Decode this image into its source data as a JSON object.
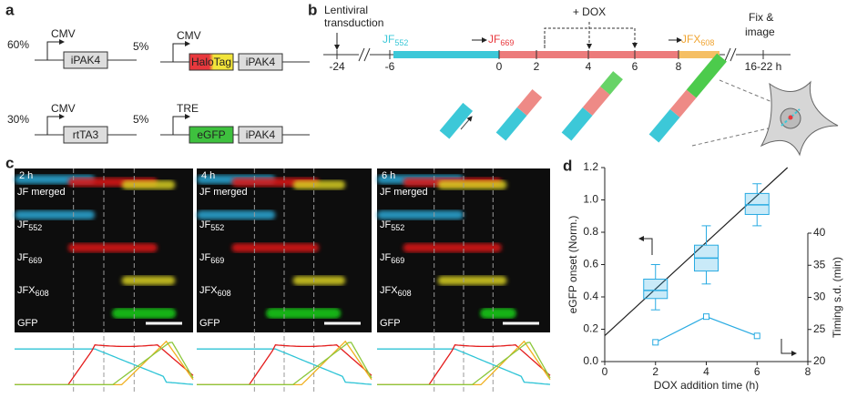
{
  "panel_a": {
    "label": "a",
    "constructs": [
      {
        "fraction": "60%",
        "promoter": "CMV",
        "parts": [
          "iPAK4"
        ]
      },
      {
        "fraction": "5%",
        "promoter": "CMV",
        "parts": [
          "HaloTag",
          "iPAK4"
        ]
      },
      {
        "fraction": "30%",
        "promoter": "CMV",
        "parts": [
          "rtTA3"
        ]
      },
      {
        "fraction": "5%",
        "promoter": "TRE",
        "parts": [
          "eGFP",
          "iPAK4"
        ]
      }
    ]
  },
  "panel_b": {
    "label": "b",
    "transduction": [
      "Lentiviral",
      "transduction"
    ],
    "dox": "+ DOX",
    "fix": [
      "Fix &",
      "image"
    ],
    "dyes": [
      {
        "base": "JF",
        "sub": "552"
      },
      {
        "base": "JF",
        "sub": "669"
      },
      {
        "base": "JFX",
        "sub": "608"
      }
    ],
    "times": [
      "-24",
      "-6",
      "0",
      "2",
      "4",
      "6",
      "8",
      "16-22 h"
    ]
  },
  "panel_c": {
    "label": "c",
    "timepoints": [
      "2 h",
      "4 h",
      "6 h"
    ],
    "channels": [
      {
        "base": "JF merged"
      },
      {
        "base": "JF",
        "sub": "552"
      },
      {
        "base": "JF",
        "sub": "669"
      },
      {
        "base": "JFX",
        "sub": "608"
      },
      {
        "base": "GFP"
      }
    ]
  },
  "panel_d": {
    "label": "d"
  },
  "chart_data": {
    "type": "box",
    "xlabel": "DOX addition time (h)",
    "ylabel": "eGFP onset (Norm.)",
    "y2label": "Timing s.d. (min)",
    "xlim": [
      0,
      8
    ],
    "xticks": [
      0,
      2,
      4,
      6,
      8
    ],
    "ylim": [
      0,
      1.2
    ],
    "yticks": [
      {
        "value": 0,
        "label": "0.0"
      },
      0.2,
      0.4,
      0.6,
      0.8,
      {
        "value": 1,
        "label": "1.0"
      },
      1.2
    ],
    "y2lim": [
      20,
      40
    ],
    "y2ticks": [
      20,
      25,
      30,
      35,
      40
    ],
    "boxes": {
      "x": [
        2,
        4,
        6
      ],
      "whislo": [
        0.32,
        0.48,
        0.84
      ],
      "q1": [
        0.39,
        0.56,
        0.91
      ],
      "med": [
        0.44,
        0.64,
        0.97
      ],
      "q3": [
        0.51,
        0.72,
        1.04
      ],
      "whishi": [
        0.6,
        0.84,
        1.1
      ],
      "color": "#29abe2"
    },
    "fit": {
      "x": [
        0,
        7.2
      ],
      "values": [
        0.16,
        1.2
      ],
      "color": "#222222"
    },
    "sd": {
      "x": [
        2,
        4,
        6
      ],
      "values": [
        23,
        27,
        24
      ],
      "axis": "y2",
      "color": "#29abe2"
    }
  }
}
